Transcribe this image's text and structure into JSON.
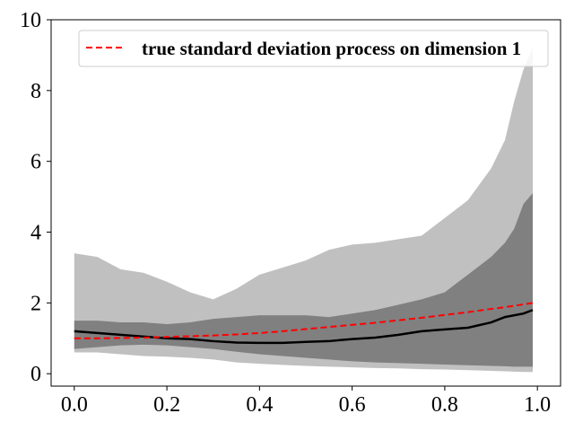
{
  "chart_data": {
    "type": "area",
    "title": "",
    "xlabel": "",
    "ylabel": "",
    "xlim": [
      -0.05,
      1.05
    ],
    "ylim": [
      -0.35,
      10.0
    ],
    "xticks": [
      0.0,
      0.2,
      0.4,
      0.6,
      0.8,
      1.0
    ],
    "xtick_labels": [
      "0.0",
      "0.2",
      "0.4",
      "0.6",
      "0.8",
      "1.0"
    ],
    "yticks": [
      0,
      2,
      4,
      6,
      8,
      10
    ],
    "ytick_labels": [
      "0",
      "2",
      "4",
      "6",
      "8",
      "10"
    ],
    "grid": false,
    "legend_position": "top-right",
    "legend": [
      {
        "label": "true standard deviation process on dimension 1",
        "color": "#ff0000",
        "style": "dashed"
      }
    ],
    "colors": {
      "outer_band": "#c0c0c0",
      "inner_band": "#808080",
      "median": "#000000",
      "true_sd": "#ff0000"
    },
    "x": [
      0.0,
      0.05,
      0.1,
      0.15,
      0.2,
      0.25,
      0.3,
      0.35,
      0.4,
      0.45,
      0.5,
      0.55,
      0.6,
      0.65,
      0.7,
      0.75,
      0.8,
      0.85,
      0.9,
      0.93,
      0.95,
      0.97,
      0.99
    ],
    "series": [
      {
        "role": "outer_upper",
        "values": [
          3.4,
          3.3,
          2.95,
          2.85,
          2.6,
          2.3,
          2.1,
          2.4,
          2.8,
          3.0,
          3.2,
          3.5,
          3.65,
          3.7,
          3.8,
          3.9,
          4.4,
          4.9,
          5.8,
          6.6,
          7.7,
          8.6,
          9.2
        ]
      },
      {
        "role": "inner_upper",
        "values": [
          1.5,
          1.5,
          1.45,
          1.45,
          1.4,
          1.45,
          1.55,
          1.6,
          1.65,
          1.65,
          1.65,
          1.6,
          1.7,
          1.8,
          1.95,
          2.1,
          2.3,
          2.8,
          3.3,
          3.7,
          4.1,
          4.8,
          5.1
        ]
      },
      {
        "role": "median",
        "values": [
          1.2,
          1.15,
          1.1,
          1.05,
          1.0,
          0.98,
          0.92,
          0.88,
          0.87,
          0.87,
          0.9,
          0.92,
          0.98,
          1.02,
          1.1,
          1.2,
          1.25,
          1.3,
          1.45,
          1.6,
          1.65,
          1.7,
          1.8
        ]
      },
      {
        "role": "inner_lower",
        "values": [
          0.7,
          0.75,
          0.8,
          0.82,
          0.8,
          0.75,
          0.7,
          0.62,
          0.55,
          0.5,
          0.45,
          0.4,
          0.35,
          0.32,
          0.3,
          0.28,
          0.26,
          0.24,
          0.22,
          0.21,
          0.2,
          0.2,
          0.2
        ]
      },
      {
        "role": "outer_lower",
        "values": [
          0.6,
          0.6,
          0.55,
          0.5,
          0.48,
          0.45,
          0.4,
          0.32,
          0.28,
          0.25,
          0.22,
          0.2,
          0.18,
          0.16,
          0.15,
          0.13,
          0.12,
          0.1,
          0.08,
          0.07,
          0.06,
          0.05,
          0.05
        ]
      },
      {
        "name": "true standard deviation process on dimension 1",
        "role": "true_sd",
        "values": [
          1.0,
          1.0,
          1.01,
          1.02,
          1.04,
          1.06,
          1.08,
          1.11,
          1.15,
          1.2,
          1.26,
          1.32,
          1.38,
          1.44,
          1.51,
          1.58,
          1.66,
          1.74,
          1.83,
          1.88,
          1.92,
          1.96,
          2.0
        ]
      }
    ]
  }
}
